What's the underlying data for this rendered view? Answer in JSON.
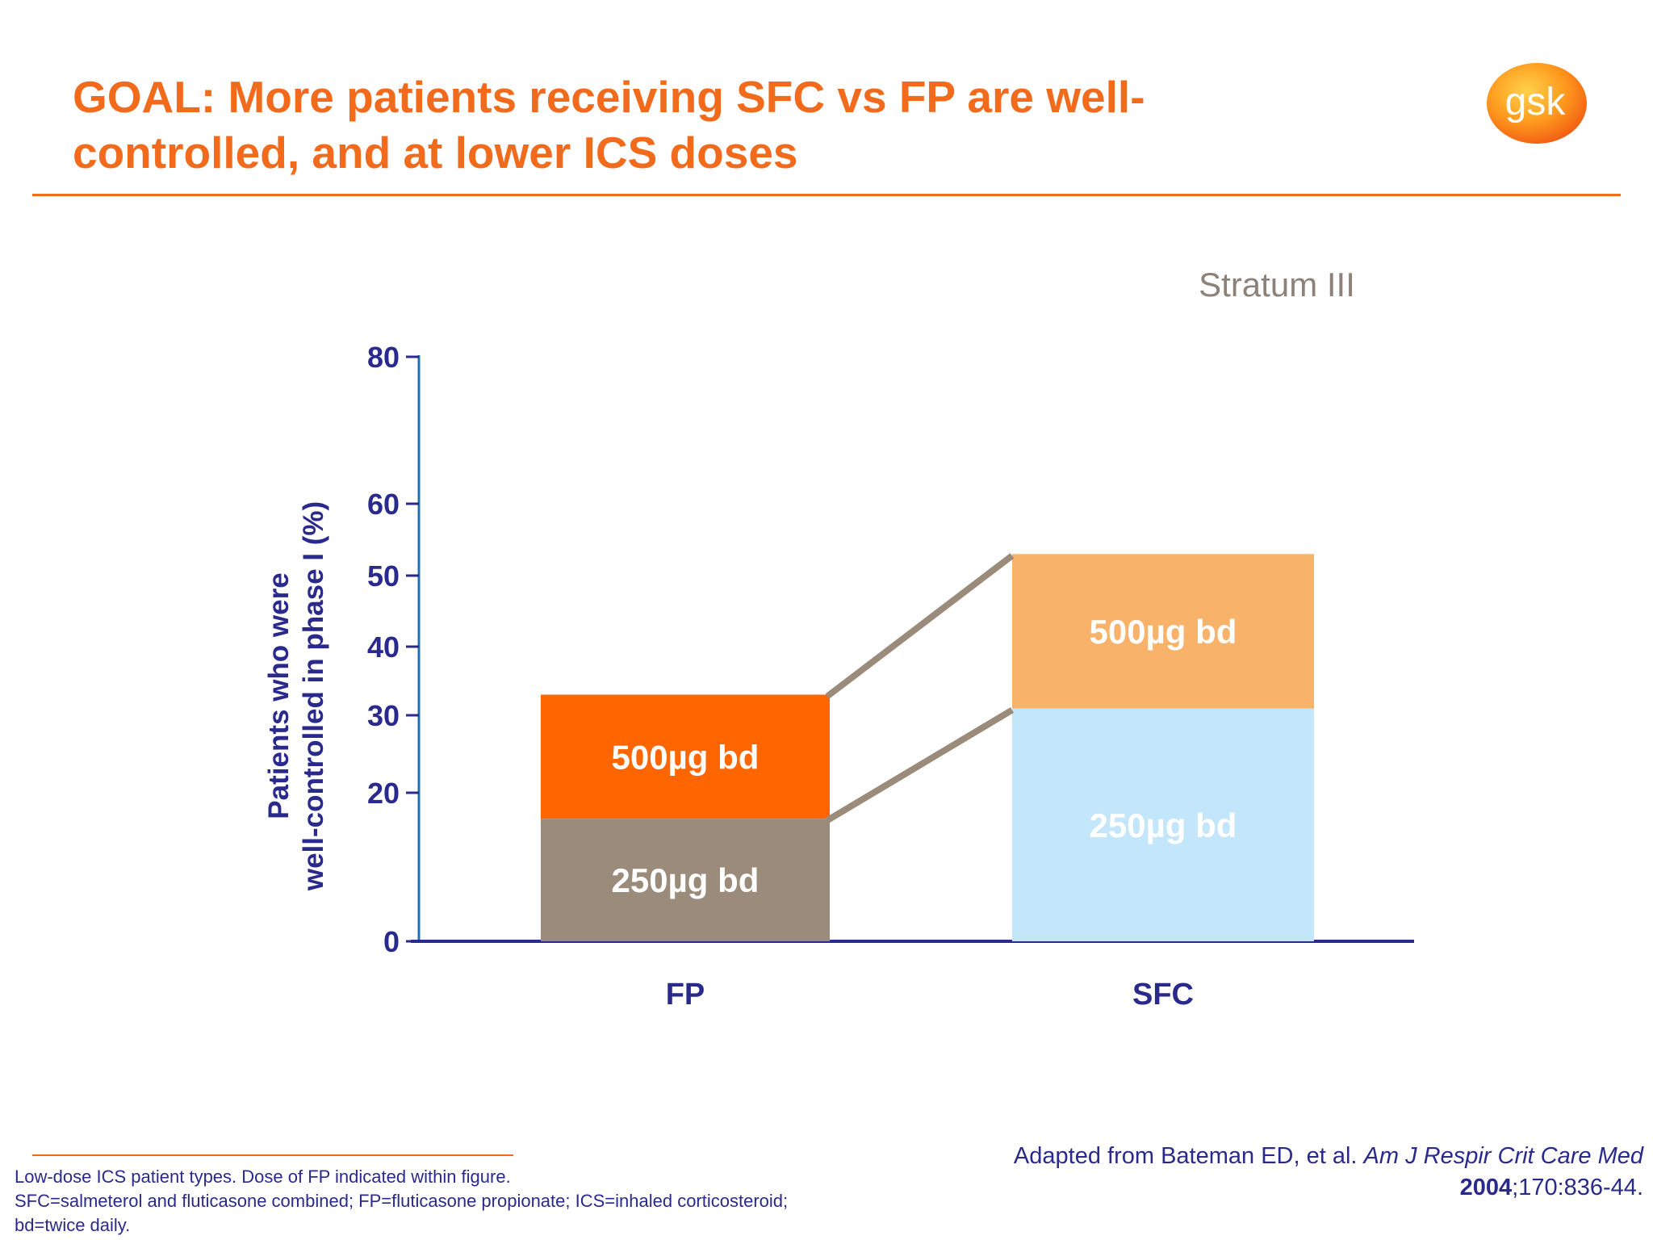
{
  "slide": {
    "title_line1": "GOAL: More patients receiving SFC vs FP are well-",
    "title_line2": "controlled, and at lower ICS doses",
    "logo_text": "gsk",
    "accent_color": "#f26b1d"
  },
  "chart_data": {
    "type": "bar",
    "stacked": true,
    "subtitle": "Stratum III",
    "ylabel_line1": "Patients who were",
    "ylabel_line2": "well-controlled in phase I (%)",
    "yticks": [
      0,
      20,
      30,
      40,
      50,
      60,
      80
    ],
    "ylim": [
      0,
      80
    ],
    "axis_scale": "broken axis: 0 to 20 and 60 to 80 compressed",
    "categories": [
      "FP",
      "SFC"
    ],
    "series": [
      {
        "segment_label": "250µg bd",
        "values": [
          16.5,
          31
        ],
        "colors": [
          "#9b8b7a",
          "#c3e6fb"
        ]
      },
      {
        "segment_label": "500µg bd",
        "values": [
          16.5,
          22
        ],
        "colors": [
          "#ff6600",
          "#f8b26a"
        ]
      }
    ],
    "legend": "none",
    "grid": false,
    "connector_color": "#9b8b7a",
    "axis_color": "#2a2a8c"
  },
  "footer": {
    "footnote_line1": "Low-dose ICS patient types. Dose of FP indicated within figure.",
    "footnote_line2": "SFC=salmeterol and fluticasone combined; FP=fluticasone propionate; ICS=inhaled corticosteroid;",
    "footnote_line3": "bd=twice daily.",
    "citation_prefix": "Adapted from Bateman ED, et al. ",
    "citation_journal": "Am J Respir Crit Care Med",
    "citation_year": "2004",
    "citation_suffix": ";170:836-44."
  }
}
